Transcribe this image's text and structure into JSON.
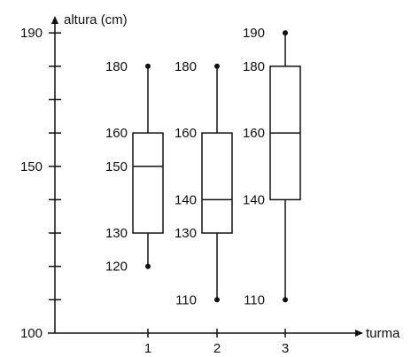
{
  "chart_data": {
    "type": "boxplot",
    "title": "",
    "ylabel": "altura (cm)",
    "xlabel": "turma",
    "ylim": [
      100,
      190
    ],
    "y_ticks": [
      100,
      150,
      190
    ],
    "y_minor_step": 10,
    "categories": [
      "1",
      "2",
      "3"
    ],
    "boxes": [
      {
        "category": "1",
        "min": 120,
        "q1": 130,
        "median": 150,
        "q3": 160,
        "max": 180,
        "labels": [
          "180",
          "160",
          "150",
          "130",
          "120"
        ]
      },
      {
        "category": "2",
        "min": 110,
        "q1": 130,
        "median": 140,
        "q3": 160,
        "max": 180,
        "labels": [
          "180",
          "160",
          "140",
          "130",
          "110"
        ]
      },
      {
        "category": "3",
        "min": 110,
        "q1": 140,
        "median": 160,
        "q3": 180,
        "max": 190,
        "labels": [
          "190",
          "180",
          "160",
          "140",
          "110"
        ]
      }
    ]
  }
}
